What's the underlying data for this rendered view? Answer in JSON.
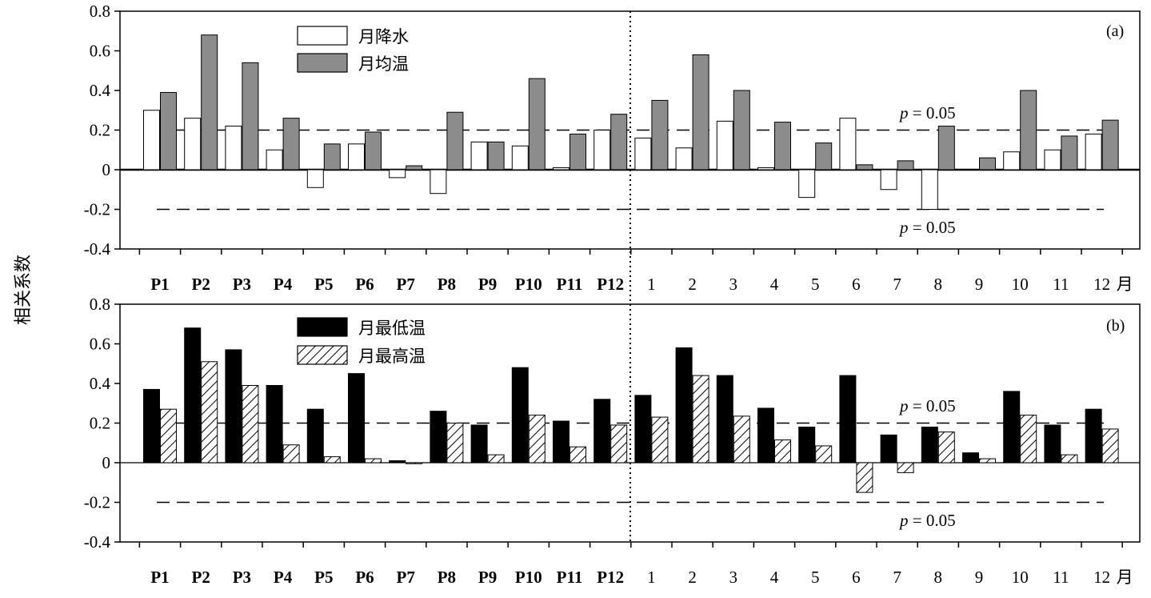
{
  "colors": {
    "white": "#ffffff",
    "gray": "#8c8c8c",
    "black": "#000000"
  },
  "chart_data": [
    {
      "panel": "(a)",
      "type": "bar",
      "categories": [
        "P1",
        "P2",
        "P3",
        "P4",
        "P5",
        "P6",
        "P7",
        "P8",
        "P9",
        "P10",
        "P11",
        "P12",
        "1",
        "2",
        "3",
        "4",
        "5",
        "6",
        "7",
        "8",
        "9",
        "10",
        "11",
        "12"
      ],
      "x_unit_suffix": "月",
      "ylabel": "相关系数",
      "ylim": [
        -0.4,
        0.8
      ],
      "yticks": [
        "0.8",
        "0.6",
        "0.4",
        "0.2",
        "0",
        "-0.2",
        "-0.4"
      ],
      "significance": [
        {
          "value": 0.2,
          "label_prefix": "p",
          "label_suffix": " = 0.05"
        },
        {
          "value": -0.2,
          "label_prefix": "p",
          "label_suffix": " = 0.05"
        }
      ],
      "series": [
        {
          "name": "月降水",
          "fill": "white",
          "values": [
            0.3,
            0.26,
            0.22,
            0.1,
            -0.09,
            0.13,
            -0.04,
            -0.12,
            0.14,
            0.12,
            0.01,
            0.2,
            0.16,
            0.11,
            0.245,
            0.01,
            -0.14,
            0.26,
            -0.1,
            -0.2,
            0.0,
            0.09,
            0.1,
            0.18
          ]
        },
        {
          "name": "月均温",
          "fill": "gray",
          "values": [
            0.39,
            0.68,
            0.54,
            0.26,
            0.13,
            0.19,
            0.02,
            0.29,
            0.14,
            0.46,
            0.18,
            0.28,
            0.35,
            0.58,
            0.4,
            0.24,
            0.135,
            0.025,
            0.045,
            0.22,
            0.06,
            0.4,
            0.17,
            0.25
          ]
        }
      ]
    },
    {
      "panel": "(b)",
      "type": "bar",
      "categories": [
        "P1",
        "P2",
        "P3",
        "P4",
        "P5",
        "P6",
        "P7",
        "P8",
        "P9",
        "P10",
        "P11",
        "P12",
        "1",
        "2",
        "3",
        "4",
        "5",
        "6",
        "7",
        "8",
        "9",
        "10",
        "11",
        "12"
      ],
      "x_unit_suffix": "月",
      "ylim": [
        -0.4,
        0.8
      ],
      "yticks": [
        "0.8",
        "0.6",
        "0.4",
        "0.2",
        "0",
        "-0.2",
        "-0.4"
      ],
      "significance": [
        {
          "value": 0.2,
          "label_prefix": "p",
          "label_suffix": " = 0.05"
        },
        {
          "value": -0.2,
          "label_prefix": "p",
          "label_suffix": " = 0.05"
        }
      ],
      "series": [
        {
          "name": "月最低温",
          "fill": "black",
          "values": [
            0.37,
            0.68,
            0.57,
            0.39,
            0.27,
            0.45,
            0.01,
            0.26,
            0.19,
            0.48,
            0.21,
            0.32,
            0.34,
            0.58,
            0.44,
            0.275,
            0.18,
            0.44,
            0.14,
            0.18,
            0.05,
            0.36,
            0.19,
            0.27
          ]
        },
        {
          "name": "月最高温",
          "fill": "hatch",
          "values": [
            0.27,
            0.51,
            0.39,
            0.09,
            0.03,
            0.02,
            -0.005,
            0.2,
            0.04,
            0.24,
            0.08,
            0.19,
            0.23,
            0.44,
            0.235,
            0.115,
            0.085,
            -0.15,
            -0.05,
            0.155,
            0.02,
            0.24,
            0.04,
            0.17
          ]
        }
      ]
    }
  ]
}
